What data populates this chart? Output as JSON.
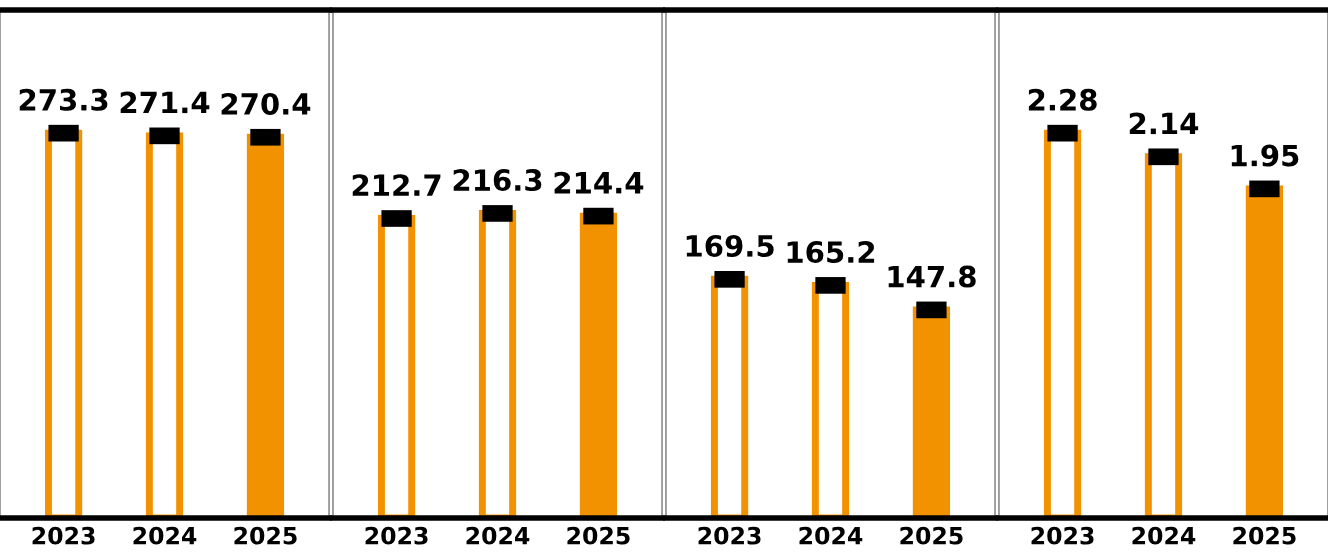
{
  "chart_data": [
    {
      "type": "bar",
      "categories": [
        "2023",
        "2024",
        "2025"
      ],
      "values": [
        273.3,
        271.4,
        270.4
      ],
      "colors": [
        "#ffffff",
        "#ffffff",
        "#f39200"
      ],
      "tick_labels": "x",
      "data_labels": true,
      "grid": false,
      "legend": false
    },
    {
      "type": "bar",
      "categories": [
        "2023",
        "2024",
        "2025"
      ],
      "values": [
        212.7,
        216.3,
        214.4
      ],
      "colors": [
        "#ffffff",
        "#ffffff",
        "#f39200"
      ],
      "tick_labels": "x",
      "data_labels": true,
      "grid": false,
      "legend": false
    },
    {
      "type": "bar",
      "categories": [
        "2023",
        "2024",
        "2025"
      ],
      "values": [
        169.5,
        165.2,
        147.8
      ],
      "colors": [
        "#ffffff",
        "#ffffff",
        "#f39200"
      ],
      "tick_labels": "x",
      "data_labels": true,
      "grid": false,
      "legend": false
    },
    {
      "type": "bar",
      "categories": [
        "2023",
        "2024",
        "2025"
      ],
      "values": [
        2.28,
        2.14,
        1.95
      ],
      "colors": [
        "#ffffff",
        "#ffffff",
        "#f39200"
      ],
      "tick_labels": "x",
      "data_labels": true,
      "grid": false,
      "legend": false
    }
  ]
}
